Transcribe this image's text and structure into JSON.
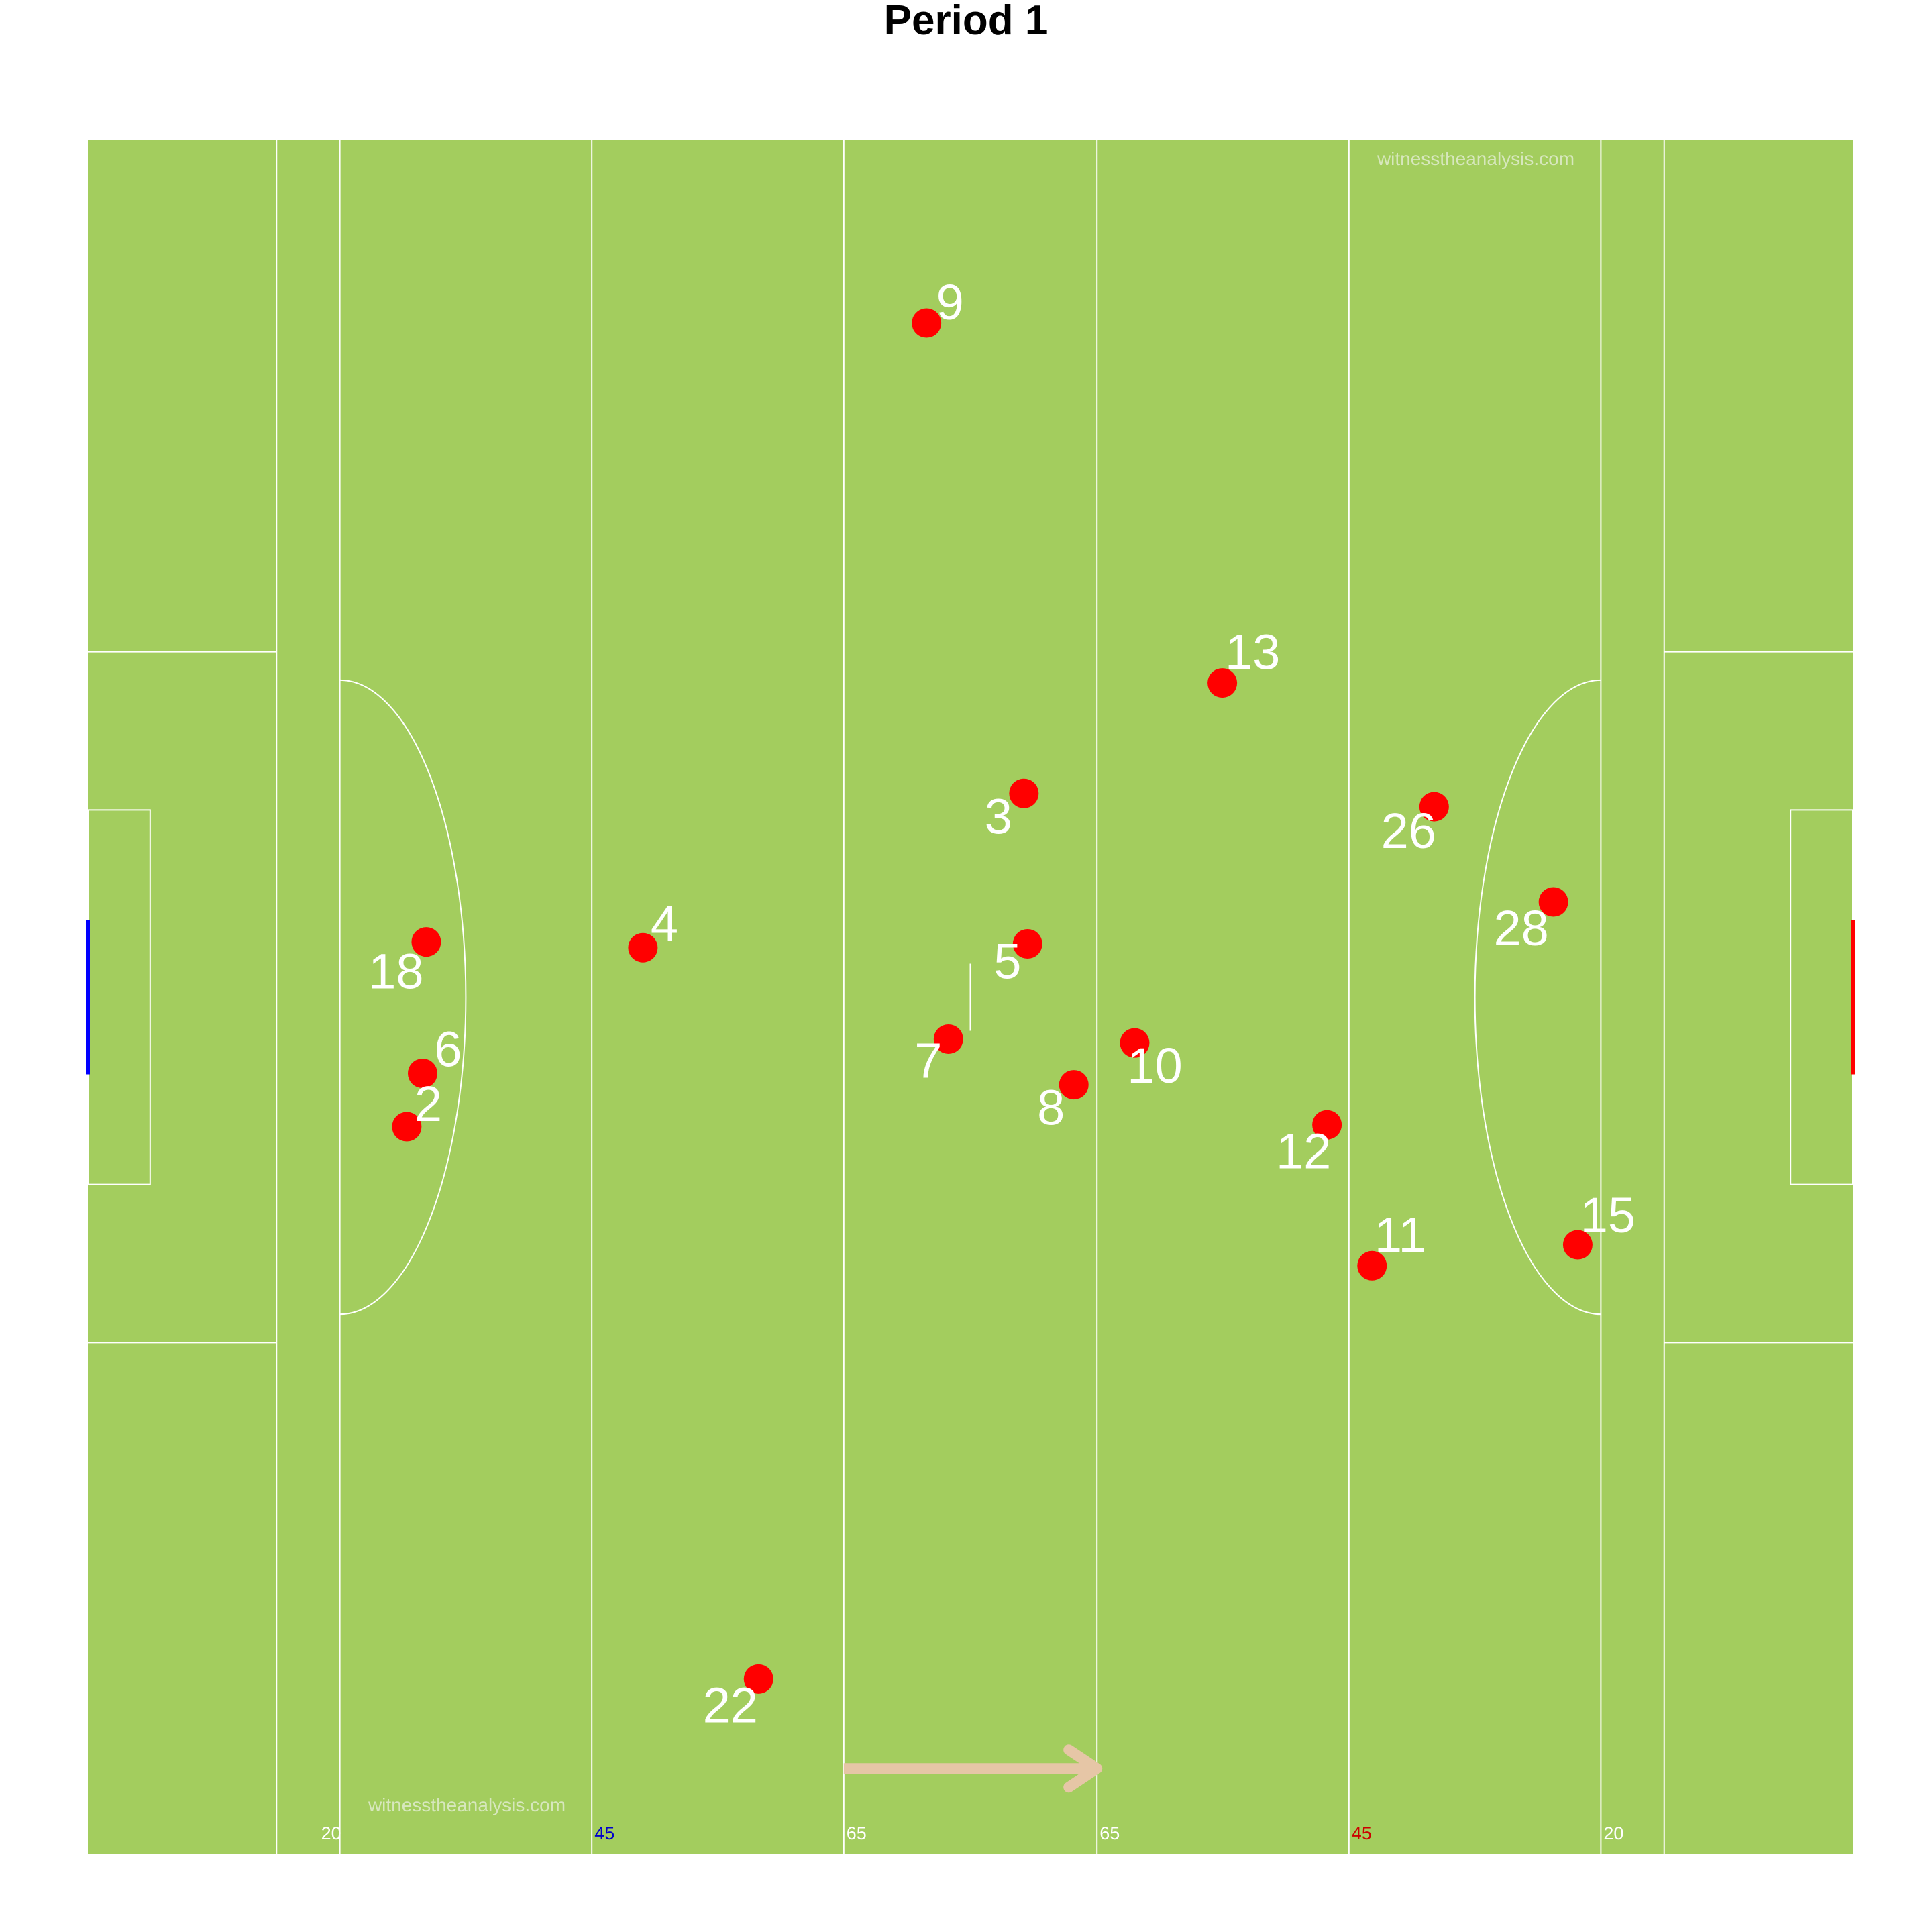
{
  "title": "Period 1",
  "watermarks": {
    "top": "witnesstheanalysis.com",
    "bottom": "witnesstheanalysis.com"
  },
  "colors": {
    "pitch": "#a3cd5e",
    "lines": "#ffffff",
    "player": "#ff0000",
    "label": "#ffffff",
    "left_goal": "#0000ff",
    "right_goal": "#ff0000",
    "arrow": "#e6c6a6",
    "watermark": "#d7e7bd",
    "left_45_label": "#0000cc",
    "right_45_label": "#cc0000"
  },
  "chart_data": {
    "type": "scatter",
    "title": "Period 1",
    "xlabel": "",
    "ylabel": "",
    "xlim": [
      0,
      145
    ],
    "ylim": [
      0,
      90
    ],
    "grid": false,
    "legend": "none",
    "field_lines_x": [
      15.5,
      20.7,
      41.4,
      62.1,
      82.9,
      103.6,
      124.3,
      129.5
    ],
    "distance_labels": [
      {
        "x": 20.7,
        "label": "20"
      },
      {
        "x": 41.4,
        "label": "45"
      },
      {
        "x": 62.1,
        "label": "65"
      },
      {
        "x": 82.9,
        "label": "65"
      },
      {
        "x": 103.6,
        "label": "45"
      },
      {
        "x": 124.3,
        "label": "20"
      }
    ],
    "direction_arrow": {
      "from_x": 62.1,
      "to_x": 82.9,
      "y": 4.5
    },
    "players": [
      {
        "number": "9",
        "x": 68.9,
        "y": 80.4
      },
      {
        "number": "13",
        "x": 93.2,
        "y": 61.5
      },
      {
        "number": "3",
        "x": 76.9,
        "y": 55.7
      },
      {
        "number": "26",
        "x": 110.6,
        "y": 55.0
      },
      {
        "number": "28",
        "x": 120.4,
        "y": 50.0
      },
      {
        "number": "18",
        "x": 27.8,
        "y": 47.9
      },
      {
        "number": "4",
        "x": 45.6,
        "y": 47.6
      },
      {
        "number": "5",
        "x": 77.2,
        "y": 47.8
      },
      {
        "number": "7",
        "x": 70.7,
        "y": 42.8
      },
      {
        "number": "10",
        "x": 86.0,
        "y": 42.6
      },
      {
        "number": "6",
        "x": 27.5,
        "y": 41.0
      },
      {
        "number": "8",
        "x": 81.0,
        "y": 40.4
      },
      {
        "number": "2",
        "x": 26.2,
        "y": 38.2
      },
      {
        "number": "12",
        "x": 101.8,
        "y": 38.3
      },
      {
        "number": "11",
        "x": 105.5,
        "y": 30.9
      },
      {
        "number": "15",
        "x": 122.4,
        "y": 32.0
      },
      {
        "number": "22",
        "x": 55.1,
        "y": 9.2
      }
    ]
  }
}
